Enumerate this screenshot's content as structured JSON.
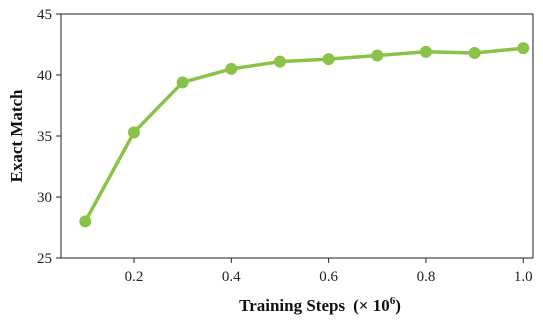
{
  "chart_data": {
    "type": "line",
    "title": "",
    "xlabel": "Training Steps",
    "xlabel_suffix": "(× 10",
    "xlabel_exponent": "6",
    "xlabel_close": ")",
    "ylabel": "Exact Match",
    "xlim": [
      0.05,
      1.02
    ],
    "ylim": [
      25,
      45
    ],
    "xticks": [
      0.2,
      0.4,
      0.6,
      0.8,
      1.0
    ],
    "xtick_labels": [
      "0.2",
      "0.4",
      "0.6",
      "0.8",
      "1.0"
    ],
    "yticks": [
      25,
      30,
      35,
      40,
      45
    ],
    "ytick_labels": [
      "25",
      "30",
      "35",
      "40",
      "45"
    ],
    "grid": false,
    "series": [
      {
        "color": "#8bc34a",
        "x": [
          0.1,
          0.2,
          0.3,
          0.4,
          0.5,
          0.6,
          0.7,
          0.8,
          0.9,
          1.0
        ],
        "y": [
          28.0,
          35.3,
          39.4,
          40.5,
          41.1,
          41.3,
          41.6,
          41.9,
          41.8,
          42.2
        ]
      }
    ]
  }
}
